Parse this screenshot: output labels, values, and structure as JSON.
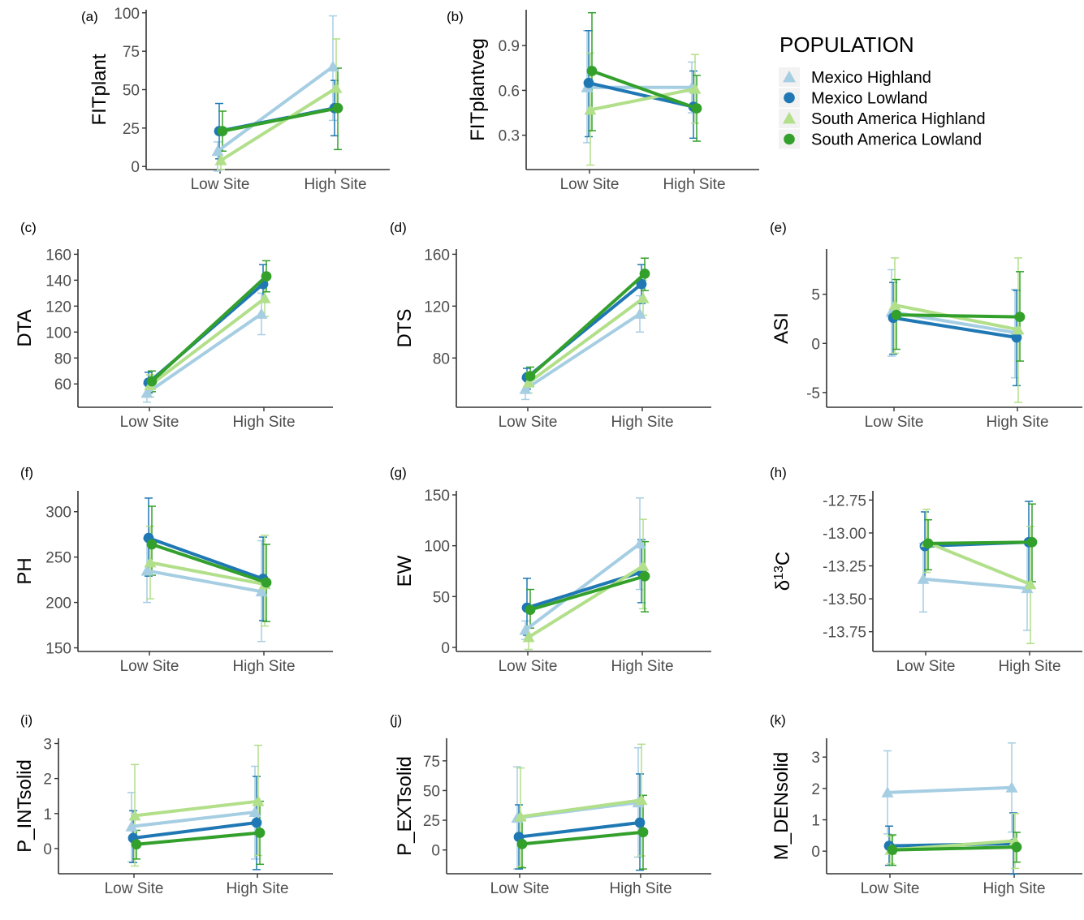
{
  "colors": {
    "Mexico Highland": "#a6cee3",
    "Mexico Lowland": "#1f78b4",
    "South America Highland": "#b2df8a",
    "South America Lowland": "#33a02c"
  },
  "legend": {
    "title": "POPULATION",
    "items": [
      {
        "label": "Mexico Highland",
        "shape": "triangle"
      },
      {
        "label": "Mexico Lowland",
        "shape": "circle"
      },
      {
        "label": "South America Highland",
        "shape": "triangle"
      },
      {
        "label": "South America Lowland",
        "shape": "circle"
      }
    ]
  },
  "chart_data": [
    {
      "panel": "(a)",
      "type": "line",
      "ylabel": "FITplant",
      "categories": [
        "Low Site",
        "High Site"
      ],
      "ylim": [
        -2,
        102
      ],
      "yticks": [
        "0",
        "25",
        "50",
        "75",
        "100"
      ],
      "ytick_values": [
        0,
        25,
        50,
        75,
        100
      ],
      "series": [
        {
          "name": "Mexico Highland",
          "values": [
            10,
            65
          ],
          "err_low": [
            -3,
            30
          ],
          "err_high": [
            16,
            98
          ]
        },
        {
          "name": "Mexico Lowland",
          "values": [
            23,
            38
          ],
          "err_low": [
            5,
            20
          ],
          "err_high": [
            41,
            56
          ]
        },
        {
          "name": "South America Highland",
          "values": [
            4,
            51
          ],
          "err_low": [
            -2,
            38
          ],
          "err_high": [
            10,
            83
          ]
        },
        {
          "name": "South America Lowland",
          "values": [
            23,
            38
          ],
          "err_low": [
            10,
            11
          ],
          "err_high": [
            36,
            64
          ]
        }
      ]
    },
    {
      "panel": "(b)",
      "type": "line",
      "ylabel": "FITplantveg",
      "categories": [
        "Low Site",
        "High Site"
      ],
      "ylim": [
        0.07,
        1.14
      ],
      "yticks": [
        "0.3",
        "0.6",
        "0.9"
      ],
      "ytick_values": [
        0.3,
        0.6,
        0.9
      ],
      "series": [
        {
          "name": "Mexico Highland",
          "values": [
            0.62,
            0.62
          ],
          "err_low": [
            0.25,
            0.45
          ],
          "err_high": [
            1.0,
            0.79
          ]
        },
        {
          "name": "Mexico Lowland",
          "values": [
            0.65,
            0.49
          ],
          "err_low": [
            0.29,
            0.28
          ],
          "err_high": [
            1.0,
            0.73
          ]
        },
        {
          "name": "South America Highland",
          "values": [
            0.47,
            0.61
          ],
          "err_low": [
            0.1,
            0.38
          ],
          "err_high": [
            0.85,
            0.84
          ]
        },
        {
          "name": "South America Lowland",
          "values": [
            0.73,
            0.48
          ],
          "err_low": [
            0.33,
            0.26
          ],
          "err_high": [
            1.12,
            0.7
          ]
        }
      ]
    },
    {
      "panel": "(c)",
      "type": "line",
      "ylabel": "DTA",
      "categories": [
        "Low Site",
        "High Site"
      ],
      "ylim": [
        42,
        164
      ],
      "yticks": [
        "60",
        "80",
        "100",
        "120",
        "140",
        "160"
      ],
      "ytick_values": [
        60,
        80,
        100,
        120,
        140,
        160
      ],
      "series": [
        {
          "name": "Mexico Highland",
          "values": [
            53,
            114
          ],
          "err_low": [
            46,
            98
          ],
          "err_high": [
            60,
            130
          ]
        },
        {
          "name": "Mexico Lowland",
          "values": [
            61,
            137
          ],
          "err_low": [
            53,
            123
          ],
          "err_high": [
            69,
            152
          ]
        },
        {
          "name": "South America Highland",
          "values": [
            59,
            126
          ],
          "err_low": [
            50,
            112
          ],
          "err_high": [
            67,
            140
          ]
        },
        {
          "name": "South America Lowland",
          "values": [
            62,
            143
          ],
          "err_low": [
            54,
            131
          ],
          "err_high": [
            70,
            155
          ]
        }
      ]
    },
    {
      "panel": "(d)",
      "type": "line",
      "ylabel": "DTS",
      "categories": [
        "Low Site",
        "High Site"
      ],
      "ylim": [
        42,
        164
      ],
      "yticks": [
        "80",
        "120",
        "160"
      ],
      "ytick_values": [
        80,
        120,
        160
      ],
      "series": [
        {
          "name": "Mexico Highland",
          "values": [
            56,
            114
          ],
          "err_low": [
            48,
            100
          ],
          "err_high": [
            64,
            128
          ]
        },
        {
          "name": "Mexico Lowland",
          "values": [
            65,
            137
          ],
          "err_low": [
            56,
            122
          ],
          "err_high": [
            72,
            152
          ]
        },
        {
          "name": "South America Highland",
          "values": [
            61,
            126
          ],
          "err_low": [
            53,
            113
          ],
          "err_high": [
            69,
            140
          ]
        },
        {
          "name": "South America Lowland",
          "values": [
            66,
            145
          ],
          "err_low": [
            58,
            132
          ],
          "err_high": [
            73,
            157
          ]
        }
      ]
    },
    {
      "panel": "(e)",
      "type": "line",
      "ylabel": "ASI",
      "categories": [
        "Low Site",
        "High Site"
      ],
      "ylim": [
        -6.5,
        9.6
      ],
      "yticks": [
        "-5",
        "0",
        "5"
      ],
      "ytick_values": [
        -5,
        0,
        5
      ],
      "series": [
        {
          "name": "Mexico Highland",
          "values": [
            3.2,
            1.1
          ],
          "err_low": [
            -1.3,
            -3.5
          ],
          "err_high": [
            7.5,
            5.5
          ]
        },
        {
          "name": "Mexico Lowland",
          "values": [
            2.6,
            0.6
          ],
          "err_low": [
            -1.1,
            -4.3
          ],
          "err_high": [
            6.2,
            5.4
          ]
        },
        {
          "name": "South America Highland",
          "values": [
            3.9,
            1.4
          ],
          "err_low": [
            -1.0,
            -6.0
          ],
          "err_high": [
            8.7,
            8.7
          ]
        },
        {
          "name": "South America Lowland",
          "values": [
            2.9,
            2.7
          ],
          "err_low": [
            -0.6,
            -1.8
          ],
          "err_high": [
            6.5,
            7.3
          ]
        }
      ]
    },
    {
      "panel": "(f)",
      "type": "line",
      "ylabel": "PH",
      "categories": [
        "Low Site",
        "High Site"
      ],
      "ylim": [
        146,
        323
      ],
      "yticks": [
        "150",
        "200",
        "250",
        "300"
      ],
      "ytick_values": [
        150,
        200,
        250,
        300
      ],
      "series": [
        {
          "name": "Mexico Highland",
          "values": [
            235,
            212
          ],
          "err_low": [
            200,
            157
          ],
          "err_high": [
            270,
            268
          ]
        },
        {
          "name": "Mexico Lowland",
          "values": [
            271,
            226
          ],
          "err_low": [
            229,
            180
          ],
          "err_high": [
            315,
            272
          ]
        },
        {
          "name": "South America Highland",
          "values": [
            244,
            220
          ],
          "err_low": [
            204,
            174
          ],
          "err_high": [
            284,
            274
          ]
        },
        {
          "name": "South America Lowland",
          "values": [
            264,
            222
          ],
          "err_low": [
            230,
            179
          ],
          "err_high": [
            306,
            264
          ]
        }
      ]
    },
    {
      "panel": "(g)",
      "type": "line",
      "ylabel": "EW",
      "categories": [
        "Low Site",
        "High Site"
      ],
      "ylim": [
        -4,
        154
      ],
      "yticks": [
        "0",
        "50",
        "100",
        "150"
      ],
      "ytick_values": [
        0,
        50,
        100,
        150
      ],
      "series": [
        {
          "name": "Mexico Highland",
          "values": [
            17,
            102
          ],
          "err_low": [
            8,
            57
          ],
          "err_high": [
            26,
            147
          ]
        },
        {
          "name": "Mexico Lowland",
          "values": [
            39,
            74
          ],
          "err_low": [
            12,
            44
          ],
          "err_high": [
            68,
            106
          ]
        },
        {
          "name": "South America Highland",
          "values": [
            10,
            80
          ],
          "err_low": [
            -2,
            38
          ],
          "err_high": [
            21,
            126
          ]
        },
        {
          "name": "South America Lowland",
          "values": [
            37,
            70
          ],
          "err_low": [
            19,
            35
          ],
          "err_high": [
            57,
            104
          ]
        }
      ]
    },
    {
      "panel": "(h)",
      "type": "line",
      "ylabel": "δ13C",
      "categories": [
        "Low Site",
        "High Site"
      ],
      "ylim": [
        -13.9,
        -12.68
      ],
      "yticks": [
        "-13.75",
        "-13.50",
        "-13.25",
        "-13.00",
        "-12.75"
      ],
      "ytick_values": [
        -13.75,
        -13.5,
        -13.25,
        -13.0,
        -12.75
      ],
      "series": [
        {
          "name": "Mexico Highland",
          "values": [
            -13.35,
            -13.42
          ],
          "err_low": [
            -13.6,
            -13.74
          ],
          "err_high": [
            -13.08,
            -13.07
          ]
        },
        {
          "name": "Mexico Lowland",
          "values": [
            -13.1,
            -13.07
          ],
          "err_low": [
            -13.35,
            -13.38
          ],
          "err_high": [
            -12.84,
            -12.76
          ]
        },
        {
          "name": "South America Highland",
          "values": [
            -13.07,
            -13.39
          ],
          "err_low": [
            -13.3,
            -13.84
          ],
          "err_high": [
            -12.82,
            -12.95
          ]
        },
        {
          "name": "South America Lowland",
          "values": [
            -13.08,
            -13.07
          ],
          "err_low": [
            -13.28,
            -13.37
          ],
          "err_high": [
            -12.9,
            -12.78
          ]
        }
      ]
    },
    {
      "panel": "(i)",
      "type": "line",
      "ylabel": "P_INTsolid",
      "categories": [
        "Low Site",
        "High Site"
      ],
      "ylim": [
        -0.72,
        3.15
      ],
      "yticks": [
        "0",
        "1",
        "2",
        "3"
      ],
      "ytick_values": [
        0,
        1,
        2,
        3
      ],
      "series": [
        {
          "name": "Mexico Highland",
          "values": [
            0.63,
            1.04
          ],
          "err_low": [
            -0.38,
            -0.3
          ],
          "err_high": [
            1.6,
            2.35
          ]
        },
        {
          "name": "Mexico Lowland",
          "values": [
            0.3,
            0.74
          ],
          "err_low": [
            -0.4,
            -0.6
          ],
          "err_high": [
            1.08,
            2.06
          ]
        },
        {
          "name": "South America Highland",
          "values": [
            0.94,
            1.35
          ],
          "err_low": [
            -0.5,
            -0.2
          ],
          "err_high": [
            2.4,
            2.95
          ]
        },
        {
          "name": "South America Lowland",
          "values": [
            0.12,
            0.45
          ],
          "err_low": [
            -0.3,
            -0.45
          ],
          "err_high": [
            0.52,
            1.35
          ]
        }
      ]
    },
    {
      "panel": "(j)",
      "type": "line",
      "ylabel": "P_EXTsolid",
      "categories": [
        "Low Site",
        "High Site"
      ],
      "ylim": [
        -20,
        94
      ],
      "yticks": [
        "0",
        "25",
        "50",
        "75"
      ],
      "ytick_values": [
        0,
        25,
        50,
        75
      ],
      "series": [
        {
          "name": "Mexico Highland",
          "values": [
            27,
            40
          ],
          "err_low": [
            -16,
            -6
          ],
          "err_high": [
            70,
            86
          ]
        },
        {
          "name": "Mexico Lowland",
          "values": [
            11,
            23
          ],
          "err_low": [
            -16,
            -17
          ],
          "err_high": [
            38,
            64
          ]
        },
        {
          "name": "South America Highland",
          "values": [
            28,
            42
          ],
          "err_low": [
            -14,
            -5
          ],
          "err_high": [
            69,
            89
          ]
        },
        {
          "name": "South America Lowland",
          "values": [
            5,
            15
          ],
          "err_low": [
            -15,
            -16
          ],
          "err_high": [
            25,
            46
          ]
        }
      ]
    },
    {
      "panel": "(k)",
      "type": "line",
      "ylabel": "M_DENsolid",
      "categories": [
        "Low Site",
        "High Site"
      ],
      "ylim": [
        -0.72,
        3.6
      ],
      "yticks": [
        "0",
        "1",
        "2",
        "3"
      ],
      "ytick_values": [
        0,
        1,
        2,
        3
      ],
      "series": [
        {
          "name": "Mexico Highland",
          "values": [
            1.87,
            2.03
          ],
          "err_low": [
            0.55,
            0.61
          ],
          "err_high": [
            3.2,
            3.45
          ]
        },
        {
          "name": "Mexico Lowland",
          "values": [
            0.17,
            0.24
          ],
          "err_low": [
            -0.45,
            -0.73
          ],
          "err_high": [
            0.8,
            1.22
          ]
        },
        {
          "name": "South America Highland",
          "values": [
            0.04,
            0.33
          ],
          "err_low": [
            -0.4,
            -0.55
          ],
          "err_high": [
            0.48,
            1.2
          ]
        },
        {
          "name": "South America Lowland",
          "values": [
            0.04,
            0.13
          ],
          "err_low": [
            -0.45,
            -0.35
          ],
          "err_high": [
            0.52,
            0.6
          ]
        }
      ]
    }
  ]
}
